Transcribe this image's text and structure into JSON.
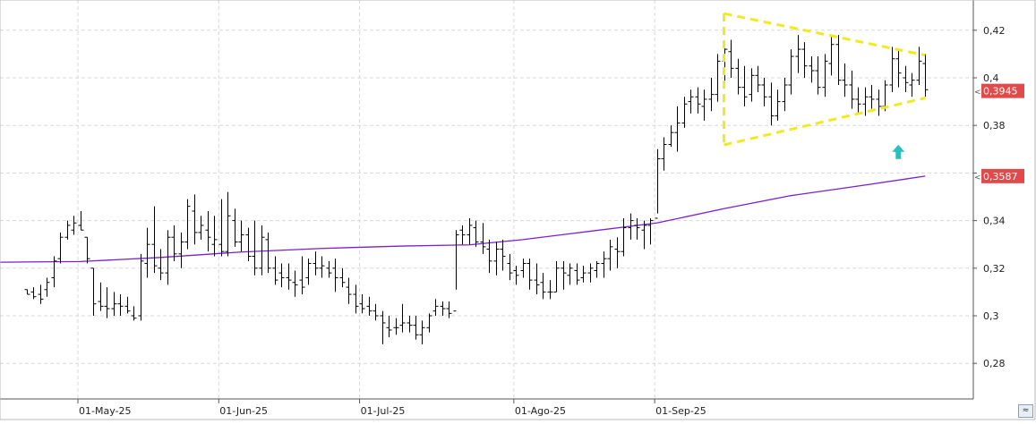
{
  "chart_data": {
    "type": "ohlc",
    "title": "",
    "xlabel": "",
    "ylabel": "",
    "ylim": [
      0.265,
      0.43
    ],
    "grid": true,
    "y_ticks": [
      0.28,
      0.3,
      0.32,
      0.34,
      0.36,
      0.38,
      0.4,
      0.42
    ],
    "y_tick_labels": [
      "0,28",
      "0,3",
      "0,32",
      "0,34",
      "",
      "0,38",
      "0,4",
      "0,42"
    ],
    "x_ticks": [
      {
        "label": "01-May-25",
        "index": 0
      },
      {
        "label": "01-Jun-25",
        "index": 21
      },
      {
        "label": "01-Jul-25",
        "index": 42
      },
      {
        "label": "01-Ago-25",
        "index": 65
      },
      {
        "label": "01-Sep-25",
        "index": 86
      }
    ],
    "series": [
      {
        "type": "ohlc",
        "color": "#000000",
        "data": [
          [
            -8,
            0.311,
            0.311,
            0.309,
            0.309
          ],
          [
            -7,
            0.31,
            0.312,
            0.307,
            0.308
          ],
          [
            -6,
            0.309,
            0.313,
            0.305,
            0.307
          ],
          [
            -5,
            0.311,
            0.316,
            0.308,
            0.314
          ],
          [
            -4,
            0.316,
            0.325,
            0.312,
            0.323
          ],
          [
            -3,
            0.324,
            0.335,
            0.322,
            0.333
          ],
          [
            -2,
            0.333,
            0.34,
            0.332,
            0.338
          ],
          [
            -1,
            0.336,
            0.342,
            0.334,
            0.339
          ],
          [
            0,
            0.338,
            0.344,
            0.336,
            0.336
          ],
          [
            1,
            0.333,
            0.333,
            0.322,
            0.324
          ],
          [
            2,
            0.32,
            0.32,
            0.3,
            0.305
          ],
          [
            3,
            0.306,
            0.314,
            0.302,
            0.304
          ],
          [
            4,
            0.304,
            0.312,
            0.299,
            0.303
          ],
          [
            5,
            0.303,
            0.31,
            0.3,
            0.305
          ],
          [
            6,
            0.305,
            0.309,
            0.3,
            0.304
          ],
          [
            7,
            0.304,
            0.308,
            0.301,
            0.302
          ],
          [
            8,
            0.3,
            0.304,
            0.298,
            0.299
          ],
          [
            9,
            0.3,
            0.326,
            0.298,
            0.323
          ],
          [
            10,
            0.322,
            0.337,
            0.316,
            0.33
          ],
          [
            11,
            0.33,
            0.346,
            0.318,
            0.321
          ],
          [
            12,
            0.32,
            0.328,
            0.315,
            0.318
          ],
          [
            13,
            0.318,
            0.336,
            0.313,
            0.333
          ],
          [
            14,
            0.333,
            0.338,
            0.323,
            0.326
          ],
          [
            15,
            0.326,
            0.335,
            0.32,
            0.331
          ],
          [
            16,
            0.331,
            0.349,
            0.328,
            0.346
          ],
          [
            17,
            0.344,
            0.351,
            0.33,
            0.335
          ],
          [
            18,
            0.335,
            0.342,
            0.332,
            0.338
          ],
          [
            19,
            0.336,
            0.344,
            0.327,
            0.333
          ],
          [
            20,
            0.33,
            0.342,
            0.325,
            0.332
          ],
          [
            21,
            0.33,
            0.349,
            0.325,
            0.327
          ],
          [
            22,
            0.327,
            0.352,
            0.325,
            0.342
          ],
          [
            23,
            0.34,
            0.345,
            0.329,
            0.331
          ],
          [
            24,
            0.331,
            0.34,
            0.327,
            0.334
          ],
          [
            25,
            0.334,
            0.337,
            0.323,
            0.325
          ],
          [
            26,
            0.325,
            0.34,
            0.317,
            0.32
          ],
          [
            27,
            0.32,
            0.338,
            0.317,
            0.333
          ],
          [
            28,
            0.332,
            0.335,
            0.318,
            0.32
          ],
          [
            29,
            0.32,
            0.325,
            0.313,
            0.315
          ],
          [
            30,
            0.318,
            0.322,
            0.312,
            0.316
          ],
          [
            31,
            0.316,
            0.322,
            0.311,
            0.315
          ],
          [
            32,
            0.314,
            0.319,
            0.308,
            0.313
          ],
          [
            33,
            0.315,
            0.325,
            0.309,
            0.312
          ],
          [
            34,
            0.316,
            0.324,
            0.313,
            0.322
          ],
          [
            35,
            0.322,
            0.327,
            0.317,
            0.32
          ],
          [
            36,
            0.32,
            0.325,
            0.316,
            0.321
          ],
          [
            37,
            0.32,
            0.323,
            0.316,
            0.318
          ],
          [
            38,
            0.32,
            0.324,
            0.31,
            0.316
          ],
          [
            39,
            0.316,
            0.32,
            0.312,
            0.314
          ],
          [
            40,
            0.312,
            0.316,
            0.305,
            0.309
          ],
          [
            41,
            0.309,
            0.313,
            0.301,
            0.304
          ],
          [
            42,
            0.305,
            0.309,
            0.301,
            0.303
          ],
          [
            43,
            0.304,
            0.308,
            0.3,
            0.302
          ],
          [
            44,
            0.302,
            0.305,
            0.298,
            0.3
          ],
          [
            45,
            0.3,
            0.302,
            0.288,
            0.297
          ],
          [
            46,
            0.295,
            0.3,
            0.291,
            0.294
          ],
          [
            47,
            0.295,
            0.299,
            0.292,
            0.295
          ],
          [
            48,
            0.296,
            0.305,
            0.293,
            0.297
          ],
          [
            49,
            0.297,
            0.3,
            0.293,
            0.296
          ],
          [
            50,
            0.296,
            0.3,
            0.29,
            0.292
          ],
          [
            51,
            0.292,
            0.298,
            0.288,
            0.295
          ],
          [
            52,
            0.295,
            0.301,
            0.293,
            0.3
          ],
          [
            53,
            0.302,
            0.307,
            0.3,
            0.304
          ],
          [
            54,
            0.304,
            0.306,
            0.3,
            0.303
          ],
          [
            55,
            0.303,
            0.306,
            0.299,
            0.301
          ],
          [
            56,
            0.302,
            0.336,
            0.311,
            0.334
          ],
          [
            57,
            0.336,
            0.338,
            0.33,
            0.334
          ],
          [
            58,
            0.334,
            0.341,
            0.33,
            0.338
          ],
          [
            59,
            0.337,
            0.34,
            0.329,
            0.331
          ],
          [
            60,
            0.331,
            0.339,
            0.326,
            0.329
          ],
          [
            61,
            0.328,
            0.332,
            0.318,
            0.323
          ],
          [
            62,
            0.323,
            0.331,
            0.317,
            0.328
          ],
          [
            63,
            0.328,
            0.332,
            0.319,
            0.325
          ],
          [
            64,
            0.322,
            0.326,
            0.315,
            0.318
          ],
          [
            65,
            0.319,
            0.321,
            0.313,
            0.317
          ],
          [
            66,
            0.319,
            0.324,
            0.316,
            0.322
          ],
          [
            67,
            0.322,
            0.324,
            0.311,
            0.315
          ],
          [
            68,
            0.315,
            0.322,
            0.309,
            0.313
          ],
          [
            69,
            0.314,
            0.318,
            0.307,
            0.31
          ],
          [
            70,
            0.31,
            0.315,
            0.307,
            0.31
          ],
          [
            71,
            0.31,
            0.323,
            0.31,
            0.32
          ],
          [
            72,
            0.32,
            0.323,
            0.311,
            0.318
          ],
          [
            73,
            0.317,
            0.322,
            0.313,
            0.32
          ],
          [
            74,
            0.319,
            0.322,
            0.313,
            0.315
          ],
          [
            75,
            0.316,
            0.321,
            0.314,
            0.318
          ],
          [
            76,
            0.318,
            0.322,
            0.314,
            0.32
          ],
          [
            77,
            0.319,
            0.323,
            0.316,
            0.322
          ],
          [
            78,
            0.322,
            0.327,
            0.316,
            0.324
          ],
          [
            79,
            0.324,
            0.332,
            0.319,
            0.329
          ],
          [
            80,
            0.328,
            0.333,
            0.32,
            0.327
          ],
          [
            81,
            0.327,
            0.341,
            0.325,
            0.337
          ],
          [
            82,
            0.337,
            0.343,
            0.332,
            0.34
          ],
          [
            83,
            0.338,
            0.341,
            0.332,
            0.337
          ],
          [
            84,
            0.336,
            0.34,
            0.328,
            0.338
          ],
          [
            85,
            0.338,
            0.341,
            0.33,
            0.34
          ],
          [
            86,
            0.341,
            0.37,
            0.343,
            0.366
          ],
          [
            87,
            0.366,
            0.375,
            0.361,
            0.372
          ],
          [
            88,
            0.372,
            0.38,
            0.371,
            0.377
          ],
          [
            89,
            0.377,
            0.388,
            0.369,
            0.381
          ],
          [
            90,
            0.381,
            0.392,
            0.379,
            0.389
          ],
          [
            91,
            0.39,
            0.395,
            0.385,
            0.392
          ],
          [
            92,
            0.392,
            0.396,
            0.385,
            0.389
          ],
          [
            93,
            0.388,
            0.395,
            0.382,
            0.391
          ],
          [
            94,
            0.391,
            0.4,
            0.386,
            0.393
          ],
          [
            95,
            0.393,
            0.41,
            0.39,
            0.407
          ],
          [
            96,
            0.407,
            0.415,
            0.398,
            0.412
          ],
          [
            97,
            0.411,
            0.416,
            0.4,
            0.404
          ],
          [
            98,
            0.404,
            0.408,
            0.393,
            0.396
          ],
          [
            99,
            0.396,
            0.405,
            0.388,
            0.392
          ],
          [
            100,
            0.393,
            0.404,
            0.39,
            0.401
          ],
          [
            101,
            0.401,
            0.405,
            0.394,
            0.397
          ],
          [
            102,
            0.397,
            0.4,
            0.388,
            0.392
          ],
          [
            103,
            0.392,
            0.398,
            0.38,
            0.384
          ],
          [
            104,
            0.384,
            0.395,
            0.382,
            0.39
          ],
          [
            105,
            0.39,
            0.4,
            0.386,
            0.397
          ],
          [
            106,
            0.397,
            0.412,
            0.393,
            0.409
          ],
          [
            107,
            0.409,
            0.418,
            0.402,
            0.412
          ],
          [
            108,
            0.412,
            0.415,
            0.4,
            0.405
          ],
          [
            109,
            0.405,
            0.409,
            0.398,
            0.403
          ],
          [
            110,
            0.403,
            0.409,
            0.393,
            0.396
          ],
          [
            111,
            0.396,
            0.41,
            0.392,
            0.407
          ],
          [
            112,
            0.406,
            0.418,
            0.401,
            0.414
          ],
          [
            113,
            0.414,
            0.418,
            0.397,
            0.399
          ],
          [
            114,
            0.399,
            0.406,
            0.392,
            0.397
          ],
          [
            115,
            0.397,
            0.403,
            0.387,
            0.391
          ],
          [
            116,
            0.391,
            0.396,
            0.385,
            0.389
          ],
          [
            117,
            0.389,
            0.396,
            0.384,
            0.392
          ],
          [
            118,
            0.392,
            0.397,
            0.387,
            0.391
          ],
          [
            119,
            0.391,
            0.395,
            0.384,
            0.388
          ],
          [
            120,
            0.388,
            0.399,
            0.386,
            0.397
          ],
          [
            121,
            0.397,
            0.413,
            0.394,
            0.408
          ],
          [
            122,
            0.408,
            0.412,
            0.396,
            0.402
          ],
          [
            123,
            0.4,
            0.405,
            0.394,
            0.398
          ],
          [
            124,
            0.397,
            0.402,
            0.392,
            0.399
          ],
          [
            125,
            0.399,
            0.413,
            0.397,
            0.407
          ],
          [
            126,
            0.406,
            0.41,
            0.392,
            0.395
          ]
        ]
      },
      {
        "type": "line",
        "color": "#7a1fd1",
        "data": [
          [
            -9,
            0.3225
          ],
          [
            0,
            0.3228
          ],
          [
            12,
            0.3245
          ],
          [
            24,
            0.3268
          ],
          [
            36,
            0.3283
          ],
          [
            48,
            0.3293
          ],
          [
            58,
            0.3298
          ],
          [
            66,
            0.332
          ],
          [
            76,
            0.3355
          ],
          [
            86,
            0.339
          ],
          [
            96,
            0.345
          ],
          [
            106,
            0.3505
          ],
          [
            116,
            0.3545
          ],
          [
            126,
            0.3587
          ]
        ]
      }
    ],
    "annotations": {
      "triangle_color": "#f0ea20",
      "triangle": [
        [
          96,
          0.427
        ],
        [
          126,
          0.4095
        ],
        [
          126,
          0.3915
        ],
        [
          96,
          0.3718
        ]
      ],
      "arrow": {
        "x": 122,
        "y": 0.3685,
        "direction": "up",
        "color": "#26c0c0"
      },
      "price_labels": [
        {
          "text": "0,3945",
          "value": 0.3945,
          "color": "#e14a4a"
        },
        {
          "text": "0,3587",
          "value": 0.3587,
          "color": "#e14a4a"
        }
      ]
    }
  },
  "ui": {
    "scroll_icon": "double-chevron-icon",
    "scroll_glyph": "≈"
  }
}
